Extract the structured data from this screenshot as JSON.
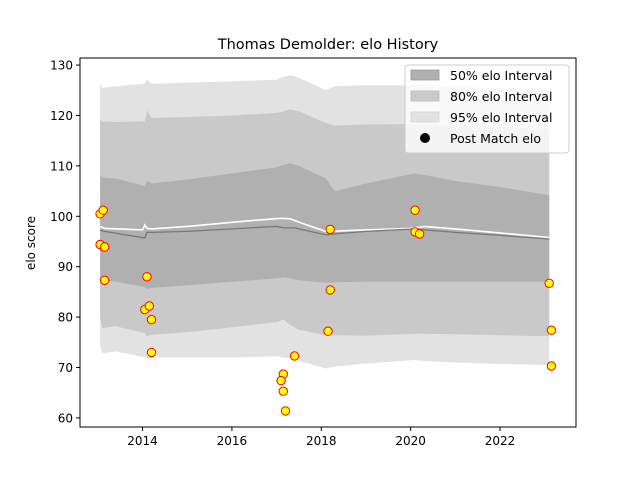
{
  "chart_data": {
    "type": "area",
    "title": "Thomas Demolder: elo History",
    "xlabel": "",
    "ylabel": "elo score",
    "xlim": [
      2012.6,
      2023.7
    ],
    "ylim": [
      58.2,
      131.4
    ],
    "xticks": [
      2014,
      2016,
      2018,
      2020,
      2022
    ],
    "yticks": [
      60,
      70,
      80,
      90,
      100,
      110,
      120,
      130
    ],
    "grid": false,
    "legend_position": "top-right",
    "legend": [
      {
        "label": "50% elo Interval",
        "kind": "patch",
        "color": "#b0b0b0"
      },
      {
        "label": "80% elo Interval",
        "kind": "patch",
        "color": "#c9c9c9"
      },
      {
        "label": "95% elo Interval",
        "kind": "patch",
        "color": "#e2e2e2"
      },
      {
        "label": "Post Match elo",
        "kind": "marker",
        "color": "#000000"
      }
    ],
    "bands": {
      "x": [
        2013.05,
        2013.1,
        2013.4,
        2014.05,
        2014.1,
        2014.2,
        2015.0,
        2016.0,
        2017.0,
        2017.15,
        2017.3,
        2017.5,
        2018.1,
        2018.3,
        2019.0,
        2020.1,
        2020.3,
        2021.0,
        2022.0,
        2023.1
      ],
      "p95_hi": [
        126.5,
        125.5,
        125.8,
        126.3,
        127.2,
        126.3,
        126.5,
        126.8,
        127.1,
        127.7,
        128.0,
        127.5,
        125.0,
        125.8,
        126.0,
        126.0,
        125.9,
        125.7,
        125.4,
        125.2
      ],
      "p95_lo": [
        74.5,
        72.8,
        73.2,
        72.0,
        71.7,
        72.0,
        72.0,
        72.0,
        72.2,
        72.0,
        71.8,
        71.3,
        69.8,
        70.2,
        70.8,
        71.5,
        71.3,
        71.0,
        70.7,
        70.5
      ],
      "p80_hi": [
        119.0,
        118.8,
        118.7,
        118.8,
        121.0,
        119.5,
        119.7,
        120.0,
        120.5,
        120.8,
        121.2,
        120.8,
        118.5,
        118.0,
        118.2,
        118.3,
        118.2,
        118.0,
        117.7,
        117.3
      ],
      "p80_lo": [
        80.0,
        77.8,
        78.2,
        76.8,
        76.2,
        76.5,
        77.0,
        78.0,
        79.0,
        79.5,
        78.5,
        77.5,
        76.4,
        76.4,
        76.3,
        76.7,
        76.7,
        76.6,
        76.4,
        76.2
      ],
      "p50_hi": [
        108.0,
        107.7,
        107.5,
        106.0,
        107.0,
        106.5,
        107.3,
        108.5,
        109.7,
        110.2,
        110.5,
        110.0,
        107.5,
        105.0,
        106.5,
        108.5,
        108.2,
        107.0,
        105.8,
        104.2
      ],
      "p50_lo": [
        88.0,
        87.3,
        87.0,
        86.0,
        85.5,
        85.8,
        86.3,
        87.0,
        87.7,
        87.9,
        87.7,
        87.3,
        86.8,
        86.9,
        87.0,
        87.0,
        87.0,
        87.0,
        87.0,
        87.0
      ]
    },
    "series": [
      {
        "name": "expected elo (white)",
        "color": "#ffffff",
        "x": [
          2013.05,
          2013.15,
          2014.0,
          2014.05,
          2014.1,
          2014.2,
          2015.0,
          2016.0,
          2016.8,
          2017.1,
          2017.3,
          2017.6,
          2018.1,
          2019.0,
          2020.0,
          2020.3,
          2021.0,
          2022.0,
          2023.1
        ],
        "y": [
          98.0,
          97.6,
          97.3,
          98.3,
          97.6,
          97.5,
          98.0,
          98.8,
          99.4,
          99.6,
          99.5,
          98.5,
          97.0,
          97.3,
          97.6,
          98.0,
          97.5,
          96.7,
          95.8
        ]
      },
      {
        "name": "median elo (dark)",
        "color": "#777777",
        "x": [
          2013.05,
          2013.15,
          2014.05,
          2014.1,
          2014.2,
          2015.0,
          2016.0,
          2017.0,
          2017.15,
          2017.4,
          2018.1,
          2018.3,
          2019.0,
          2020.1,
          2020.3,
          2021.0,
          2022.0,
          2023.1
        ],
        "y": [
          97.2,
          97.0,
          95.7,
          96.8,
          96.8,
          97.0,
          97.5,
          98.0,
          97.7,
          97.7,
          96.3,
          96.5,
          97.0,
          97.5,
          97.3,
          96.8,
          96.2,
          95.5
        ]
      }
    ],
    "points": {
      "name": "Post Match elo",
      "face_color": "#ffff00",
      "edge_color": "#ff0000",
      "x": [
        2013.05,
        2013.12,
        2013.05,
        2013.15,
        2013.15,
        2014.1,
        2014.05,
        2014.15,
        2014.2,
        2014.2,
        2017.15,
        2017.15,
        2017.1,
        2017.2,
        2017.4,
        2018.2,
        2018.2,
        2018.15,
        2020.1,
        2020.1,
        2020.2,
        2023.1,
        2023.15,
        2023.15
      ],
      "y": [
        100.5,
        101.2,
        94.4,
        93.9,
        87.3,
        88.0,
        81.5,
        82.2,
        79.5,
        73.0,
        68.7,
        65.3,
        67.4,
        61.4,
        72.3,
        97.4,
        85.4,
        77.2,
        101.2,
        96.9,
        96.5,
        86.7,
        77.4,
        70.3
      ]
    }
  }
}
